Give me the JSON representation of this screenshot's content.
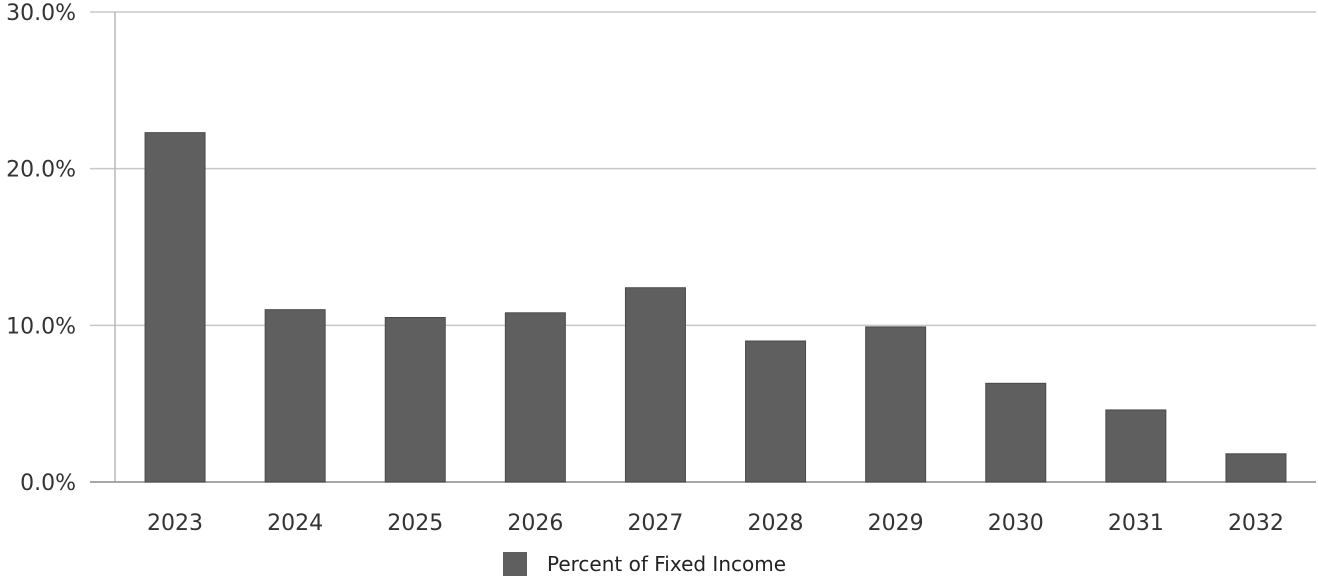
{
  "chart_data": {
    "type": "bar",
    "categories": [
      "2023",
      "2024",
      "2025",
      "2026",
      "2027",
      "2028",
      "2029",
      "2030",
      "2031",
      "2032"
    ],
    "series": [
      {
        "name": "Percent of Fixed Income",
        "values": [
          22.3,
          11.0,
          10.5,
          10.8,
          12.4,
          9.0,
          9.9,
          6.3,
          4.6,
          1.8
        ],
        "color": "#5f5f5f"
      }
    ],
    "yticks": [
      "0.0%",
      "10.0%",
      "20.0%",
      "30.0%"
    ],
    "ylim": [
      0,
      30
    ],
    "grid": true,
    "legend": "bottom-center",
    "title": "",
    "xlabel": "",
    "ylabel": ""
  }
}
